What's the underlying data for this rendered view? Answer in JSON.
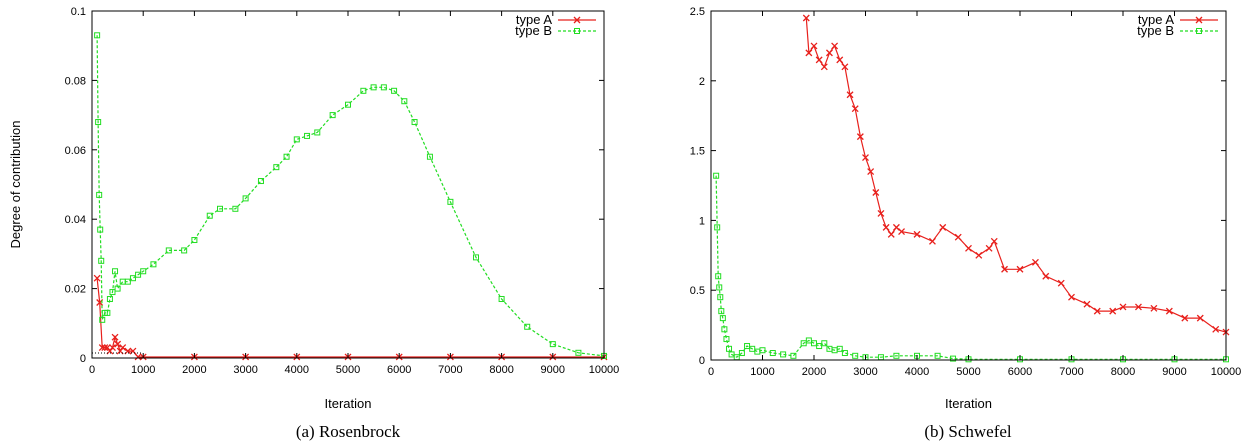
{
  "chart_data": [
    {
      "type": "line",
      "caption": "(a) Rosenbrock",
      "xlabel": "Iteration",
      "ylabel": "Degree of contribution",
      "xlim": [
        0,
        10000
      ],
      "ylim": [
        0,
        0.1
      ],
      "xticks": [
        "0",
        "1000",
        "2000",
        "3000",
        "4000",
        "5000",
        "6000",
        "7000",
        "8000",
        "9000",
        "10000"
      ],
      "yticks": [
        "0",
        "0.02",
        "0.04",
        "0.06",
        "0.08",
        "0.1"
      ],
      "grid": false,
      "legend_position": "top-right",
      "series": [
        {
          "name": "type A",
          "color": "#e8201c",
          "marker": "x",
          "dash": "solid",
          "x": [
            100,
            150,
            200,
            250,
            300,
            350,
            400,
            450,
            500,
            550,
            600,
            700,
            800,
            900,
            1000,
            2000,
            3000,
            4000,
            5000,
            6000,
            7000,
            8000,
            9000,
            10000
          ],
          "y": [
            0.023,
            0.016,
            0.003,
            0.003,
            0.003,
            0.002,
            0.003,
            0.006,
            0.004,
            0.002,
            0.003,
            0.002,
            0.002,
            0.0003,
            0.0003,
            0.0003,
            0.0003,
            0.0003,
            0.0003,
            0.0003,
            0.0003,
            0.0003,
            0.0003,
            0.0003
          ]
        },
        {
          "name": "type B",
          "color": "#22dd22",
          "marker": "square",
          "dash": "dashed",
          "x": [
            100,
            120,
            140,
            160,
            180,
            200,
            250,
            300,
            350,
            400,
            450,
            500,
            600,
            700,
            800,
            900,
            1000,
            1200,
            1500,
            1800,
            2000,
            2300,
            2500,
            2800,
            3000,
            3300,
            3600,
            3800,
            4000,
            4200,
            4400,
            4700,
            5000,
            5300,
            5500,
            5700,
            5900,
            6100,
            6300,
            6600,
            7000,
            7500,
            8000,
            8500,
            9000,
            9500,
            10000
          ],
          "y": [
            0.093,
            0.068,
            0.047,
            0.037,
            0.028,
            0.011,
            0.013,
            0.013,
            0.017,
            0.019,
            0.025,
            0.02,
            0.022,
            0.022,
            0.023,
            0.024,
            0.025,
            0.027,
            0.031,
            0.031,
            0.034,
            0.041,
            0.043,
            0.043,
            0.046,
            0.051,
            0.055,
            0.058,
            0.063,
            0.064,
            0.065,
            0.07,
            0.073,
            0.077,
            0.078,
            0.078,
            0.077,
            0.074,
            0.068,
            0.058,
            0.045,
            0.029,
            0.017,
            0.009,
            0.004,
            0.0015,
            0.0006
          ]
        }
      ]
    },
    {
      "type": "line",
      "caption": "(b) Schwefel",
      "xlabel": "Iteration",
      "ylabel": "",
      "xlim": [
        0,
        10000
      ],
      "ylim": [
        0,
        2.5
      ],
      "xticks": [
        "0",
        "1000",
        "2000",
        "3000",
        "4000",
        "5000",
        "6000",
        "7000",
        "8000",
        "9000",
        "10000"
      ],
      "yticks": [
        "0",
        "0.5",
        "1",
        "1.5",
        "2",
        "2.5"
      ],
      "grid": false,
      "legend_position": "top-right",
      "series": [
        {
          "name": "type A",
          "color": "#e8201c",
          "marker": "x",
          "dash": "solid",
          "x": [
            1850,
            1900,
            2000,
            2100,
            2200,
            2300,
            2400,
            2500,
            2600,
            2700,
            2800,
            2900,
            3000,
            3100,
            3200,
            3300,
            3400,
            3500,
            3600,
            3700,
            4000,
            4300,
            4500,
            4800,
            5000,
            5200,
            5400,
            5500,
            5700,
            6000,
            6300,
            6500,
            6800,
            7000,
            7300,
            7500,
            7800,
            8000,
            8300,
            8600,
            8900,
            9200,
            9500,
            9800,
            10000
          ],
          "y": [
            2.45,
            2.2,
            2.25,
            2.15,
            2.1,
            2.2,
            2.25,
            2.15,
            2.1,
            1.9,
            1.8,
            1.6,
            1.45,
            1.35,
            1.2,
            1.05,
            0.95,
            0.9,
            0.95,
            0.92,
            0.9,
            0.85,
            0.95,
            0.88,
            0.8,
            0.75,
            0.8,
            0.85,
            0.65,
            0.65,
            0.7,
            0.6,
            0.55,
            0.45,
            0.4,
            0.35,
            0.35,
            0.38,
            0.38,
            0.37,
            0.35,
            0.3,
            0.3,
            0.22,
            0.2
          ]
        },
        {
          "name": "type B",
          "color": "#22dd22",
          "marker": "square",
          "dash": "dashed",
          "x": [
            100,
            120,
            140,
            160,
            180,
            200,
            230,
            260,
            300,
            350,
            400,
            500,
            600,
            700,
            800,
            900,
            1000,
            1200,
            1400,
            1600,
            1800,
            1900,
            2000,
            2100,
            2200,
            2300,
            2400,
            2500,
            2600,
            2800,
            3000,
            3300,
            3600,
            4000,
            4400,
            4700,
            5000,
            6000,
            7000,
            8000,
            9000,
            10000
          ],
          "y": [
            1.32,
            0.95,
            0.6,
            0.52,
            0.45,
            0.35,
            0.3,
            0.22,
            0.15,
            0.08,
            0.04,
            0.02,
            0.05,
            0.1,
            0.08,
            0.06,
            0.07,
            0.05,
            0.04,
            0.03,
            0.12,
            0.14,
            0.12,
            0.1,
            0.12,
            0.08,
            0.07,
            0.08,
            0.05,
            0.03,
            0.02,
            0.02,
            0.03,
            0.03,
            0.03,
            0.01,
            0.005,
            0.005,
            0.005,
            0.005,
            0.005,
            0.005
          ]
        }
      ]
    }
  ]
}
